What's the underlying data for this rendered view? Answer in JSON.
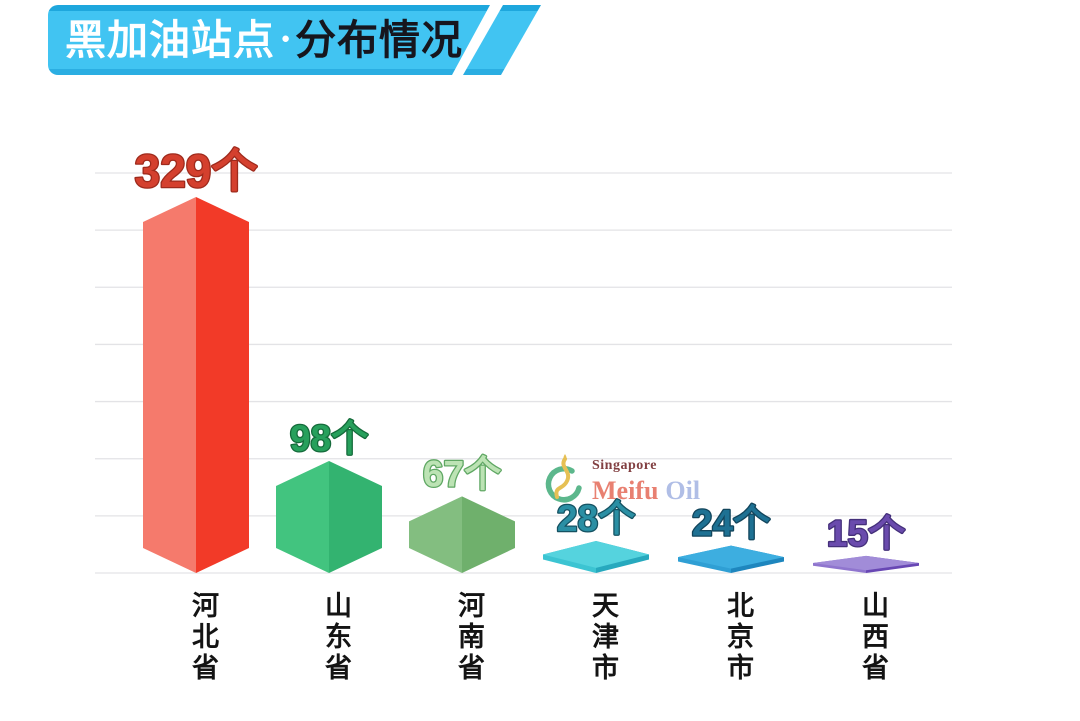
{
  "header": {
    "title_left": "黑加油站点",
    "separator_dot": "●",
    "title_right": "分布情况",
    "banner_color": "#41C4F2",
    "banner_top_edge_color": "#1EA7DD",
    "banner_bottom_edge_color": "#2BAEE2",
    "title_left_color": "#FFFFFF",
    "title_right_color": "#16161E"
  },
  "watermark": {
    "line1": "Singapore",
    "line2_part1": "Meifu",
    "line2_part2": "Oil",
    "line1_color": "#7D393B",
    "meifu_color": "#E87B6C",
    "oil_color": "#ADBCE6",
    "logo_green": "#56B588",
    "logo_yellow": "#E6BE4E"
  },
  "chart_data": {
    "type": "bar",
    "title": "黑加油站点●分布情况",
    "xlabel": "",
    "ylabel": "",
    "categories": [
      "河北省",
      "山东省",
      "河南省",
      "天津市",
      "北京市",
      "山西省"
    ],
    "values": [
      329,
      98,
      67,
      28,
      24,
      15
    ],
    "value_labels": [
      "329个",
      "98个",
      "67个",
      "28个",
      "24个",
      "15个"
    ],
    "unit_suffix": "个",
    "ylim": [
      0,
      350
    ],
    "gridline_count": 8,
    "grid": true,
    "legend": false,
    "gridline_color": "#E3E3E6",
    "category_label_color": "#141414",
    "bar_styles": [
      {
        "left": "#F57A6C",
        "right": "#F23A28",
        "top": "#F78273",
        "label_fill": "#D4402E",
        "label_stroke": "#9E2A1C"
      },
      {
        "left": "#42C47F",
        "right": "#33B370",
        "top": "#4CCB87",
        "label_fill": "#27A05C",
        "label_stroke": "#156B3B"
      },
      {
        "left": "#83BE80",
        "right": "#6FB06C",
        "top": "#8CC489",
        "label_fill": "#BCE3B4",
        "label_stroke": "#5FA763"
      },
      {
        "left": "#3CC4D2",
        "right": "#27A9BE",
        "top": "#55D3DE",
        "label_fill": "#2A8FA4",
        "label_stroke": "#155262"
      },
      {
        "left": "#2F9FD4",
        "right": "#1E86BE",
        "top": "#3DAEE0",
        "label_fill": "#1E7193",
        "label_stroke": "#12455C"
      },
      {
        "left": "#8F75CE",
        "right": "#6847B4",
        "top": "#A18CD8",
        "label_fill": "#6A4BAD",
        "label_stroke": "#44307A"
      }
    ]
  }
}
